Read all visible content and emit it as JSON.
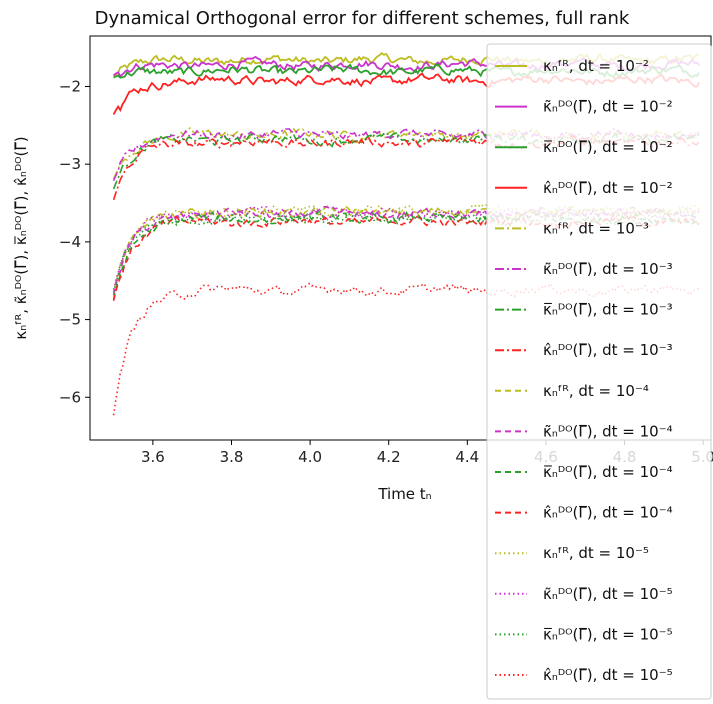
{
  "chart_data": {
    "type": "line",
    "title": "Dynamical Orthogonal error for different schemes, full rank",
    "xlabel": "Time tₙ",
    "ylabel": "κₙᶠᴿ, κ̃ₙᴰᴼ(Γ̅), κ̅ₙᴰᴼ(Γ̅), κ̂ₙᴰᴼ(Γ̅)",
    "xlim": [
      3.44,
      5.02
    ],
    "ylim": [
      -6.55,
      -1.35
    ],
    "xticks": [
      3.6,
      3.8,
      4.0,
      4.2,
      4.4,
      4.6,
      4.8,
      5.0
    ],
    "yticks": [
      -2,
      -3,
      -4,
      -5,
      -6
    ],
    "legend_position": "right (overlapping)",
    "series": [
      {
        "name": "κₙᶠᴿ, dt = 10⁻²",
        "color": "#bcbd22",
        "style": "solid",
        "level": -1.66,
        "start": -1.85
      },
      {
        "name": "κ̃ₙᴰᴼ(Γ̅), dt = 10⁻²",
        "color": "#cc33cc",
        "style": "solid",
        "level": -1.72,
        "start": -1.85
      },
      {
        "name": "κ̅ₙᴰᴼ(Γ̅), dt = 10⁻²",
        "color": "#2ca02c",
        "style": "solid",
        "level": -1.8,
        "start": -1.9
      },
      {
        "name": "κ̂ₙᴰᴼ(Γ̅), dt = 10⁻²",
        "color": "#ff2222",
        "style": "solid",
        "level": -1.92,
        "start": -2.38
      },
      {
        "name": "κₙᶠᴿ, dt = 10⁻³",
        "color": "#bcbd22",
        "style": "dashdot",
        "level": -2.62,
        "start": -3.2
      },
      {
        "name": "κ̃ₙᴰᴼ(Γ̅), dt = 10⁻³",
        "color": "#cc33cc",
        "style": "dashdot",
        "level": -2.62,
        "start": -3.2
      },
      {
        "name": "κ̅ₙᴰᴼ(Γ̅), dt = 10⁻³",
        "color": "#2ca02c",
        "style": "dashdot",
        "level": -2.68,
        "start": -3.3
      },
      {
        "name": "κ̂ₙᴰᴼ(Γ̅), dt = 10⁻³",
        "color": "#ff2222",
        "style": "dashdot",
        "level": -2.72,
        "start": -3.45
      },
      {
        "name": "κₙᶠᴿ, dt = 10⁻⁴",
        "color": "#bcbd22",
        "style": "dashed",
        "level": -3.62,
        "start": -4.7
      },
      {
        "name": "κ̃ₙᴰᴼ(Γ̅), dt = 10⁻⁴",
        "color": "#cc33cc",
        "style": "dashed",
        "level": -3.64,
        "start": -4.7
      },
      {
        "name": "κ̅ₙᴰᴼ(Γ̅), dt = 10⁻⁴",
        "color": "#2ca02c",
        "style": "dashed",
        "level": -3.7,
        "start": -4.75
      },
      {
        "name": "κ̂ₙᴰᴼ(Γ̅), dt = 10⁻⁴",
        "color": "#ff2222",
        "style": "dashed",
        "level": -3.74,
        "start": -4.75
      },
      {
        "name": "κₙᶠᴿ, dt = 10⁻⁵",
        "color": "#bcbd22",
        "style": "dotted",
        "level": -3.6,
        "start": -4.6
      },
      {
        "name": "κ̃ₙᴰᴼ(Γ̅), dt = 10⁻⁵",
        "color": "#cc33cc",
        "style": "dotted",
        "level": -3.64,
        "start": -4.6
      },
      {
        "name": "κ̅ₙᴰᴼ(Γ̅), dt = 10⁻⁵",
        "color": "#2ca02c",
        "style": "dotted",
        "level": -3.7,
        "start": -4.65
      },
      {
        "name": "κ̂ₙᴰᴼ(Γ̅), dt = 10⁻⁵",
        "color": "#ff2222",
        "style": "dotted",
        "level": -4.62,
        "start": -6.25
      }
    ]
  }
}
